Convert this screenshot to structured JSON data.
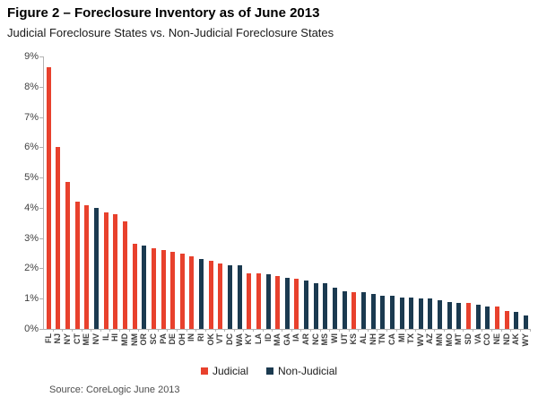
{
  "header": {
    "title": "Figure 2 – Foreclosure Inventory as of June 2013",
    "subtitle": "Judicial Foreclosure States vs. Non-Judicial Foreclosure States"
  },
  "source_text": "Source: CoreLogic  June 2013",
  "colors": {
    "judicial": "#e8412d",
    "non_judicial": "#1b3a50",
    "axis": "#b3b3b3",
    "label_text": "#3f3f3f"
  },
  "chart_data": {
    "type": "bar",
    "title": "Figure 2 – Foreclosure Inventory as of June 2013",
    "subtitle": "Judicial Foreclosure States vs. Non-Judicial Foreclosure States",
    "xlabel": "",
    "ylabel": "",
    "unit": "%",
    "ylim": [
      0,
      9
    ],
    "y_ticks": [
      "9%",
      "8%",
      "7%",
      "6%",
      "5%",
      "4%",
      "3%",
      "2%",
      "1%",
      "0%"
    ],
    "grid": false,
    "legend_position": "bottom",
    "legend": [
      {
        "label": "Judicial",
        "key": "judicial"
      },
      {
        "label": "Non-Judicial",
        "key": "non_judicial"
      }
    ],
    "points": [
      {
        "state": "FL",
        "value": 8.65,
        "group": "judicial"
      },
      {
        "state": "NJ",
        "value": 6.0,
        "group": "judicial"
      },
      {
        "state": "NY",
        "value": 4.85,
        "group": "judicial"
      },
      {
        "state": "CT",
        "value": 4.2,
        "group": "judicial"
      },
      {
        "state": "ME",
        "value": 4.1,
        "group": "judicial"
      },
      {
        "state": "NV",
        "value": 4.0,
        "group": "non_judicial"
      },
      {
        "state": "IL",
        "value": 3.85,
        "group": "judicial"
      },
      {
        "state": "HI",
        "value": 3.8,
        "group": "judicial"
      },
      {
        "state": "MD",
        "value": 3.55,
        "group": "judicial"
      },
      {
        "state": "NM",
        "value": 2.8,
        "group": "judicial"
      },
      {
        "state": "OR",
        "value": 2.75,
        "group": "non_judicial"
      },
      {
        "state": "SC",
        "value": 2.65,
        "group": "judicial"
      },
      {
        "state": "PA",
        "value": 2.6,
        "group": "judicial"
      },
      {
        "state": "DE",
        "value": 2.55,
        "group": "judicial"
      },
      {
        "state": "OH",
        "value": 2.5,
        "group": "judicial"
      },
      {
        "state": "IN",
        "value": 2.4,
        "group": "judicial"
      },
      {
        "state": "RI",
        "value": 2.3,
        "group": "non_judicial"
      },
      {
        "state": "OK",
        "value": 2.25,
        "group": "judicial"
      },
      {
        "state": "VT",
        "value": 2.15,
        "group": "judicial"
      },
      {
        "state": "DC",
        "value": 2.1,
        "group": "non_judicial"
      },
      {
        "state": "WA",
        "value": 2.1,
        "group": "non_judicial"
      },
      {
        "state": "KY",
        "value": 1.85,
        "group": "judicial"
      },
      {
        "state": "LA",
        "value": 1.85,
        "group": "judicial"
      },
      {
        "state": "ID",
        "value": 1.8,
        "group": "non_judicial"
      },
      {
        "state": "MA",
        "value": 1.75,
        "group": "judicial"
      },
      {
        "state": "GA",
        "value": 1.7,
        "group": "non_judicial"
      },
      {
        "state": "IA",
        "value": 1.65,
        "group": "judicial"
      },
      {
        "state": "AR",
        "value": 1.6,
        "group": "non_judicial"
      },
      {
        "state": "NC",
        "value": 1.5,
        "group": "non_judicial"
      },
      {
        "state": "MS",
        "value": 1.5,
        "group": "non_judicial"
      },
      {
        "state": "WI",
        "value": 1.35,
        "group": "non_judicial"
      },
      {
        "state": "UT",
        "value": 1.25,
        "group": "non_judicial"
      },
      {
        "state": "KS",
        "value": 1.2,
        "group": "judicial"
      },
      {
        "state": "AL",
        "value": 1.2,
        "group": "non_judicial"
      },
      {
        "state": "NH",
        "value": 1.15,
        "group": "non_judicial"
      },
      {
        "state": "TN",
        "value": 1.1,
        "group": "non_judicial"
      },
      {
        "state": "CA",
        "value": 1.1,
        "group": "non_judicial"
      },
      {
        "state": "MI",
        "value": 1.05,
        "group": "non_judicial"
      },
      {
        "state": "TX",
        "value": 1.05,
        "group": "non_judicial"
      },
      {
        "state": "WV",
        "value": 1.0,
        "group": "non_judicial"
      },
      {
        "state": "AZ",
        "value": 1.0,
        "group": "non_judicial"
      },
      {
        "state": "MN",
        "value": 0.95,
        "group": "non_judicial"
      },
      {
        "state": "MO",
        "value": 0.9,
        "group": "non_judicial"
      },
      {
        "state": "MT",
        "value": 0.85,
        "group": "non_judicial"
      },
      {
        "state": "SD",
        "value": 0.85,
        "group": "judicial"
      },
      {
        "state": "VA",
        "value": 0.8,
        "group": "non_judicial"
      },
      {
        "state": "CO",
        "value": 0.75,
        "group": "non_judicial"
      },
      {
        "state": "NE",
        "value": 0.75,
        "group": "judicial"
      },
      {
        "state": "ND",
        "value": 0.6,
        "group": "judicial"
      },
      {
        "state": "AK",
        "value": 0.55,
        "group": "non_judicial"
      },
      {
        "state": "WY",
        "value": 0.45,
        "group": "non_judicial"
      }
    ]
  }
}
